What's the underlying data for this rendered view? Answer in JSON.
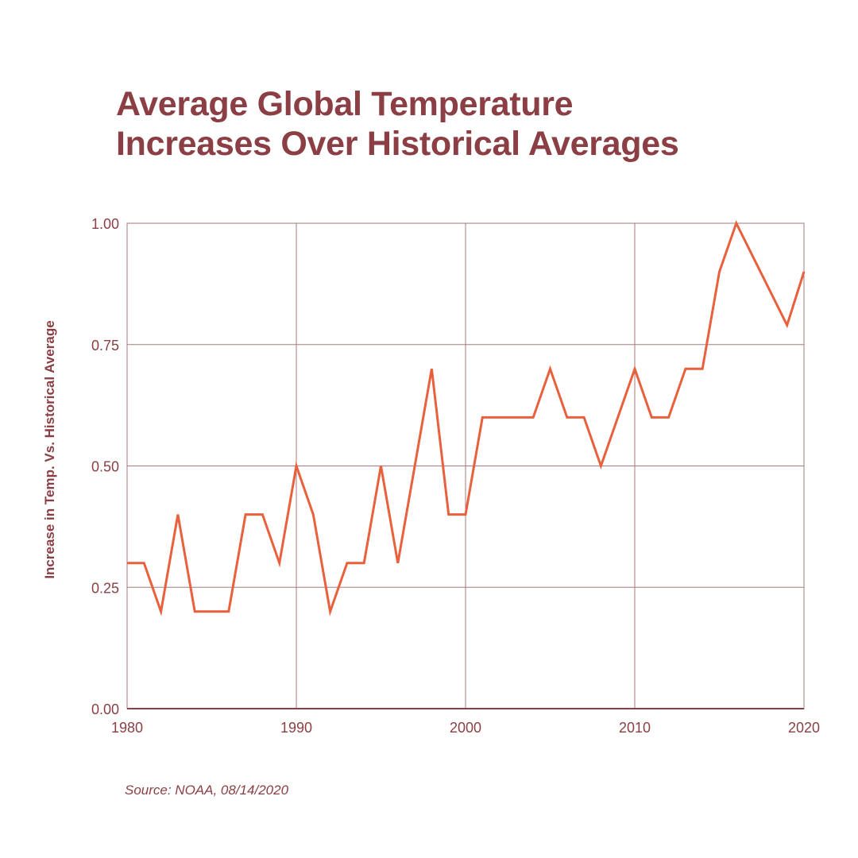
{
  "chart_data": {
    "type": "line",
    "title_lines": [
      "Average Global Temperature",
      "Increases Over Historical Averages"
    ],
    "xlabel": "",
    "ylabel": "Increase in Temp. Vs. Historical Average",
    "xlim": [
      1980,
      2020
    ],
    "ylim": [
      0,
      1
    ],
    "x_ticks": [
      "1980",
      "1990",
      "2000",
      "2010",
      "2020"
    ],
    "y_ticks": [
      "0.00",
      "0.25",
      "0.50",
      "0.75",
      "1.00"
    ],
    "grid": true,
    "source": "Source: NOAA, 08/14/2020",
    "line_color": "#e8603c",
    "grid_color": "#a8787b",
    "text_color": "#8b3f44",
    "series": [
      {
        "x": [
          1980,
          1981,
          1982,
          1983,
          1984,
          1985,
          1986,
          1987,
          1988,
          1989,
          1990,
          1991,
          1992,
          1993,
          1994,
          1995,
          1996,
          1997,
          1998,
          1999,
          2000,
          2001,
          2002,
          2003,
          2004,
          2005,
          2006,
          2007,
          2008,
          2009,
          2010,
          2011,
          2012,
          2013,
          2014,
          2015,
          2016,
          2017,
          2018,
          2019,
          2020
        ],
        "values": [
          0.3,
          0.3,
          0.2,
          0.4,
          0.2,
          0.2,
          0.2,
          0.4,
          0.4,
          0.3,
          0.5,
          0.4,
          0.2,
          0.3,
          0.3,
          0.5,
          0.3,
          0.5,
          0.7,
          0.4,
          0.4,
          0.6,
          0.6,
          0.6,
          0.6,
          0.7,
          0.6,
          0.6,
          0.5,
          0.6,
          0.7,
          0.6,
          0.6,
          0.7,
          0.7,
          0.9,
          1.0,
          0.93,
          0.86,
          0.79,
          0.9
        ]
      }
    ]
  }
}
